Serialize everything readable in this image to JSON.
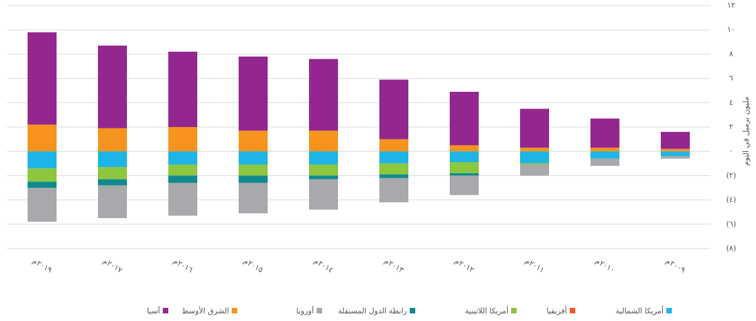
{
  "chart_data": {
    "type": "bar",
    "stacked": true,
    "y_axis_label": "مليون برميل في اليوم",
    "categories": [
      "٢٠١٩م",
      "٢٠١٧م",
      "٢٠١٦م",
      "٢٠١٥م",
      "٢٠١٤م",
      "٢٠١٣م",
      "٢٠١٢م",
      "٢٠١١م",
      "٢٠١٠م",
      "٢٠٠٩م"
    ],
    "series": [
      {
        "name": "أمريكا الشمالية",
        "color": "#1fb4e6",
        "values": [
          -1.4,
          -1.3,
          -1.1,
          -1.1,
          -1.1,
          -1.0,
          -0.9,
          -1.0,
          -0.6,
          -0.4
        ]
      },
      {
        "name": "أفريقيا",
        "color": "#f15a24",
        "values": [
          0,
          0,
          0,
          0,
          0,
          0,
          0,
          0,
          0,
          0
        ]
      },
      {
        "name": "أمريكا اللاتينية",
        "color": "#8dc63f",
        "values": [
          -1.1,
          -1.0,
          -0.9,
          -0.9,
          -0.9,
          -0.9,
          -0.9,
          -0.1,
          0,
          0
        ]
      },
      {
        "name": "رابطة الدول المستقلة",
        "color": "#0f8b8d",
        "values": [
          -0.5,
          -0.5,
          -0.6,
          -0.6,
          -0.3,
          -0.3,
          -0.2,
          0,
          0,
          0
        ]
      },
      {
        "name": "أوروبا",
        "color": "#a7a9ac",
        "values": [
          -2.8,
          -2.7,
          -2.7,
          -2.5,
          -2.5,
          -2.0,
          -1.6,
          -0.9,
          -0.6,
          -0.2
        ]
      },
      {
        "name": "الشرق الأوسط",
        "color": "#f7941d",
        "values": [
          2.2,
          1.9,
          2.0,
          1.7,
          1.7,
          1.0,
          0.5,
          0.3,
          0.3,
          0.2
        ]
      },
      {
        "name": "آسيا",
        "color": "#93278f",
        "values": [
          7.6,
          6.8,
          6.2,
          6.1,
          5.9,
          4.9,
          4.4,
          3.2,
          2.4,
          1.4
        ]
      }
    ],
    "ylim": [
      -8,
      12
    ],
    "yticks": [
      {
        "value": 12,
        "label": "١٢"
      },
      {
        "value": 10,
        "label": "١٠"
      },
      {
        "value": 8,
        "label": "٨"
      },
      {
        "value": 6,
        "label": "٦"
      },
      {
        "value": 4,
        "label": "٤"
      },
      {
        "value": 2,
        "label": "٢"
      },
      {
        "value": 0,
        "label": "٠"
      },
      {
        "value": -2,
        "label": "(٢)"
      },
      {
        "value": -4,
        "label": "(٤)"
      },
      {
        "value": -6,
        "label": "(٦)"
      },
      {
        "value": -8,
        "label": "(٨)"
      }
    ],
    "grid": true,
    "legend": "bottom"
  }
}
